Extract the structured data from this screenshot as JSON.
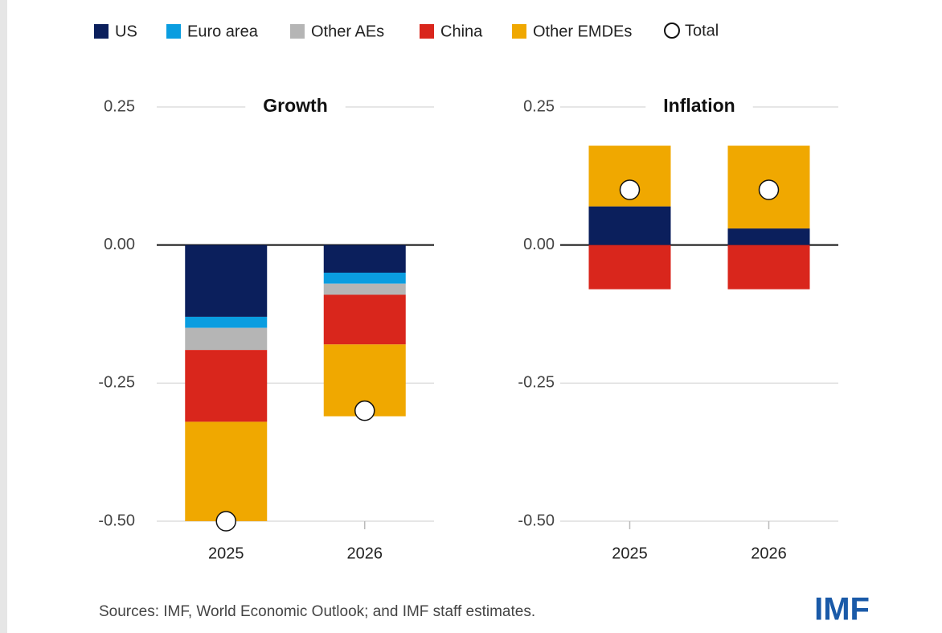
{
  "chart_data": [
    {
      "type": "stacked_bar",
      "title": "Growth",
      "categories": [
        "2025",
        "2026"
      ],
      "series": [
        {
          "name": "US",
          "color": "#0b1f5c",
          "values": [
            -0.13,
            -0.05
          ]
        },
        {
          "name": "Euro area",
          "color": "#0a9de0",
          "values": [
            -0.02,
            -0.02
          ]
        },
        {
          "name": "Other AEs",
          "color": "#b5b5b5",
          "values": [
            -0.04,
            -0.02
          ]
        },
        {
          "name": "China",
          "color": "#d9261c",
          "values": [
            -0.13,
            -0.09
          ]
        },
        {
          "name": "Other EMDEs",
          "color": "#f0a800",
          "values": [
            -0.18,
            -0.13
          ]
        }
      ],
      "totals": {
        "name": "Total",
        "values": [
          -0.5,
          -0.3
        ]
      },
      "ylim": [
        -0.5,
        0.25
      ],
      "yticks": [
        0.25,
        {
          "value": 0,
          "label": "0.00"
        },
        -0.25,
        {
          "value": -0.5,
          "label": "-0.50"
        }
      ],
      "grid": true
    },
    {
      "type": "stacked_bar",
      "title": "Inflation",
      "categories": [
        "2025",
        "2026"
      ],
      "series": [
        {
          "name": "US",
          "color": "#0b1f5c",
          "values": [
            0.07,
            0.03
          ]
        },
        {
          "name": "Euro area",
          "color": "#0a9de0",
          "values": [
            0,
            0
          ]
        },
        {
          "name": "Other AEs",
          "color": "#b5b5b5",
          "values": [
            0,
            0
          ]
        },
        {
          "name": "China",
          "color": "#d9261c",
          "values": [
            -0.08,
            -0.08
          ]
        },
        {
          "name": "Other EMDEs",
          "color": "#f0a800",
          "values": [
            0.11,
            0.15
          ]
        }
      ],
      "totals": {
        "name": "Total",
        "values": [
          0.1,
          0.1
        ]
      },
      "ylim": [
        -0.5,
        0.25
      ],
      "yticks": [
        0.25,
        {
          "value": 0,
          "label": "0.00"
        },
        -0.25,
        {
          "value": -0.5,
          "label": "-0.50"
        }
      ],
      "grid": true
    }
  ],
  "footer": {
    "source": "Sources: IMF, World Economic Outlook; and IMF staff estimates.",
    "logo": "IMF"
  }
}
